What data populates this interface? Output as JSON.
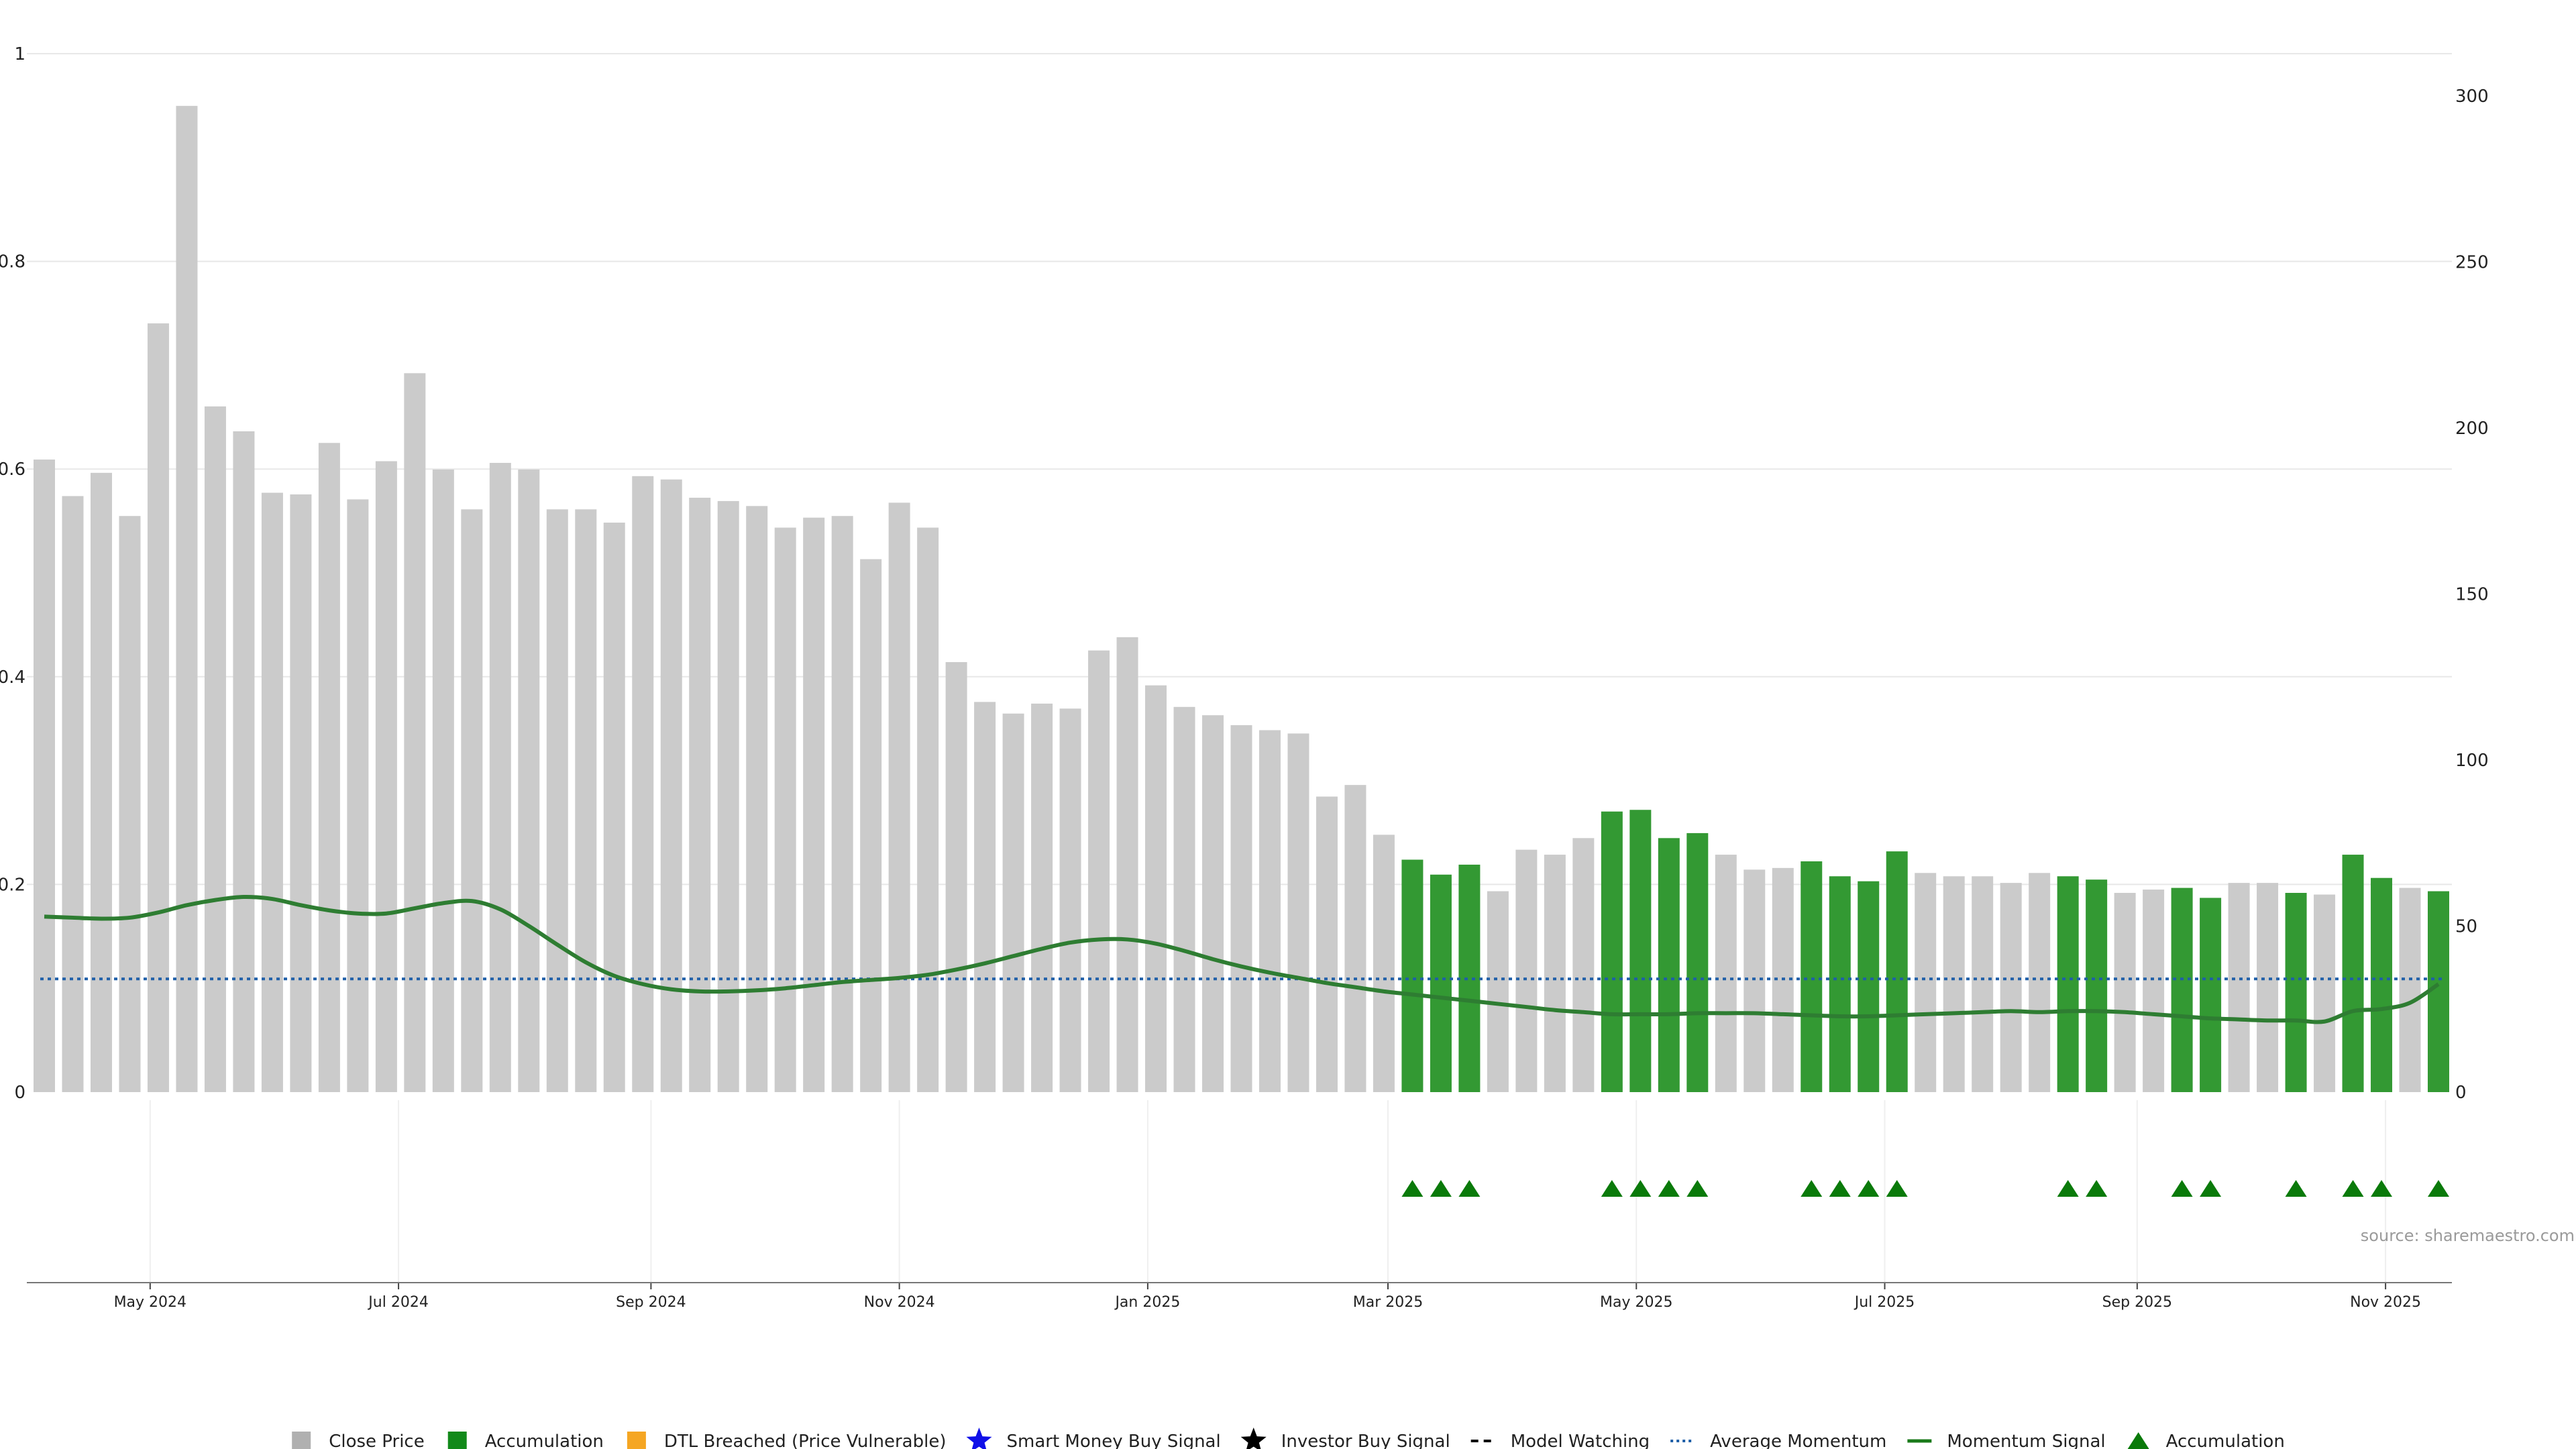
{
  "chart_data": {
    "type": "bar",
    "source": "source: sharemaestro.com",
    "x": [
      "2024-04-05",
      "2024-04-12",
      "2024-04-19",
      "2024-04-26",
      "2024-05-03",
      "2024-05-10",
      "2024-05-17",
      "2024-05-24",
      "2024-05-31",
      "2024-06-07",
      "2024-06-14",
      "2024-06-21",
      "2024-06-28",
      "2024-07-05",
      "2024-07-12",
      "2024-07-19",
      "2024-07-26",
      "2024-08-02",
      "2024-08-09",
      "2024-08-16",
      "2024-08-23",
      "2024-08-30",
      "2024-09-06",
      "2024-09-13",
      "2024-09-20",
      "2024-09-27",
      "2024-10-04",
      "2024-10-11",
      "2024-10-18",
      "2024-10-25",
      "2024-11-01",
      "2024-11-08",
      "2024-11-15",
      "2024-11-22",
      "2024-11-29",
      "2024-12-06",
      "2024-12-13",
      "2024-12-20",
      "2024-12-27",
      "2025-01-03",
      "2025-01-10",
      "2025-01-17",
      "2025-01-24",
      "2025-01-31",
      "2025-02-07",
      "2025-02-14",
      "2025-02-21",
      "2025-02-28",
      "2025-03-07",
      "2025-03-14",
      "2025-03-21",
      "2025-03-28",
      "2025-04-04",
      "2025-04-11",
      "2025-04-18",
      "2025-04-25",
      "2025-05-02",
      "2025-05-09",
      "2025-05-16",
      "2025-05-23",
      "2025-05-30",
      "2025-06-06",
      "2025-06-13",
      "2025-06-20",
      "2025-06-27",
      "2025-07-04",
      "2025-07-11",
      "2025-07-18",
      "2025-07-25",
      "2025-08-01",
      "2025-08-08",
      "2025-08-15",
      "2025-08-22",
      "2025-08-29",
      "2025-09-05",
      "2025-09-12",
      "2025-09-19",
      "2025-09-26",
      "2025-10-03",
      "2025-10-10",
      "2025-10-17",
      "2025-10-24",
      "2025-10-31",
      "2025-11-07",
      "2025-11-14"
    ],
    "close_price": [
      190.5,
      179.5,
      186.5,
      173.5,
      231.5,
      297,
      206.5,
      199,
      180.5,
      180,
      195.5,
      178.5,
      190,
      216.5,
      187.5,
      175.5,
      189.5,
      187.5,
      175.5,
      175.5,
      171.5,
      185.5,
      184.5,
      179,
      178,
      176.5,
      170,
      173,
      173.5,
      160.5,
      177.5,
      170,
      129.5,
      117.5,
      114,
      117,
      115.5,
      133,
      137,
      122.5,
      116,
      113.5,
      110.5,
      109,
      108,
      89,
      92.5,
      77.5,
      70,
      65.5,
      68.5,
      60.5,
      73,
      71.5,
      76.5,
      84.5,
      85,
      76.5,
      78,
      71.5,
      67,
      67.5,
      69.5,
      65,
      63.5,
      72.5,
      66,
      65,
      65,
      63,
      66,
      65,
      64,
      60,
      61,
      61.5,
      58.5,
      63,
      63,
      60,
      59.5,
      71.5,
      64.5,
      61.5,
      60.5
    ],
    "accumulation": [
      false,
      false,
      false,
      false,
      false,
      false,
      false,
      false,
      false,
      false,
      false,
      false,
      false,
      false,
      false,
      false,
      false,
      false,
      false,
      false,
      false,
      false,
      false,
      false,
      false,
      false,
      false,
      false,
      false,
      false,
      false,
      false,
      false,
      false,
      false,
      false,
      false,
      false,
      false,
      false,
      false,
      false,
      false,
      false,
      false,
      false,
      false,
      false,
      true,
      true,
      true,
      false,
      false,
      false,
      false,
      true,
      true,
      true,
      true,
      false,
      false,
      false,
      true,
      true,
      true,
      true,
      false,
      false,
      false,
      false,
      false,
      true,
      true,
      false,
      false,
      true,
      true,
      false,
      false,
      true,
      false,
      true,
      true,
      false,
      true
    ],
    "momentum_signal": [
      0.169,
      0.168,
      0.167,
      0.168,
      0.173,
      0.18,
      0.185,
      0.188,
      0.186,
      0.18,
      0.175,
      0.172,
      0.172,
      0.177,
      0.182,
      0.184,
      0.176,
      0.16,
      0.142,
      0.125,
      0.112,
      0.104,
      0.099,
      0.097,
      0.097,
      0.098,
      0.1,
      0.103,
      0.106,
      0.108,
      0.11,
      0.113,
      0.118,
      0.124,
      0.131,
      0.138,
      0.144,
      0.147,
      0.147,
      0.143,
      0.136,
      0.128,
      0.121,
      0.115,
      0.11,
      0.105,
      0.101,
      0.097,
      0.094,
      0.091,
      0.088,
      0.085,
      0.082,
      0.079,
      0.077,
      0.075,
      0.075,
      0.075,
      0.076,
      0.076,
      0.076,
      0.075,
      0.074,
      0.073,
      0.073,
      0.074,
      0.075,
      0.076,
      0.077,
      0.078,
      0.077,
      0.078,
      0.078,
      0.077,
      0.075,
      0.073,
      0.071,
      0.07,
      0.069,
      0.069,
      0.068,
      0.078,
      0.08,
      0.086,
      0.104
    ],
    "average_momentum": 0.109,
    "accumulation_markers": [
      "2025-03-07",
      "2025-03-14",
      "2025-03-21",
      "2025-04-25",
      "2025-05-02",
      "2025-05-09",
      "2025-05-16",
      "2025-06-13",
      "2025-06-20",
      "2025-06-27",
      "2025-07-04",
      "2025-08-15",
      "2025-08-22",
      "2025-09-12",
      "2025-09-19",
      "2025-10-10",
      "2025-10-24",
      "2025-10-31",
      "2025-11-14"
    ],
    "left_axis": {
      "ylim": [
        0,
        1
      ],
      "ticks": [
        0,
        0.2,
        0.4,
        0.6,
        0.8,
        1
      ],
      "tick_labels": [
        "0",
        "0.2",
        "0.4",
        "0.6",
        "0.8",
        "1"
      ]
    },
    "right_axis": {
      "ylim": [
        0,
        312.5
      ],
      "ticks": [
        0,
        50,
        100,
        150,
        200,
        250,
        300
      ],
      "tick_labels": [
        "0",
        "50",
        "100",
        "150",
        "200",
        "250",
        "300"
      ]
    },
    "x_ticks": [
      {
        "date": "2024-05-01",
        "label": "May 2024"
      },
      {
        "date": "2024-07-01",
        "label": "Jul 2024"
      },
      {
        "date": "2024-09-01",
        "label": "Sep 2024"
      },
      {
        "date": "2024-11-01",
        "label": "Nov 2024"
      },
      {
        "date": "2025-01-01",
        "label": "Jan 2025"
      },
      {
        "date": "2025-03-01",
        "label": "Mar 2025"
      },
      {
        "date": "2025-05-01",
        "label": "May 2025"
      },
      {
        "date": "2025-07-01",
        "label": "Jul 2025"
      },
      {
        "date": "2025-09-01",
        "label": "Sep 2025"
      },
      {
        "date": "2025-11-01",
        "label": "Nov 2025"
      }
    ],
    "legend_position": "bottom-center",
    "legend": [
      {
        "label": "Close Price",
        "symbol": "square",
        "color": "#b0b0b0"
      },
      {
        "label": "Accumulation",
        "symbol": "square",
        "color": "#12891a"
      },
      {
        "label": "DTL Breached (Price Vulnerable)",
        "symbol": "square",
        "color": "#f5a623"
      },
      {
        "label": "Smart Money Buy Signal",
        "symbol": "star",
        "color": "#1010e8"
      },
      {
        "label": "Investor Buy Signal",
        "symbol": "star",
        "color": "#000000"
      },
      {
        "label": "Model Watching",
        "symbol": "dash",
        "color": "#000000"
      },
      {
        "label": "Average Momentum",
        "symbol": "dotted",
        "color": "#1f5fa8"
      },
      {
        "label": "Momentum Signal",
        "symbol": "line",
        "color": "#1a7a1a"
      },
      {
        "label": "Accumulation",
        "symbol": "triangle",
        "color": "#0a7a0a"
      }
    ],
    "colors": {
      "close_bar": "#cbcbcb",
      "accumulation_bar": "#339933",
      "momentum_line": "#2e7d32",
      "average_line": "#1f5fa8",
      "marker": "#0a7a0a",
      "grid": "#e8e8e8"
    }
  }
}
